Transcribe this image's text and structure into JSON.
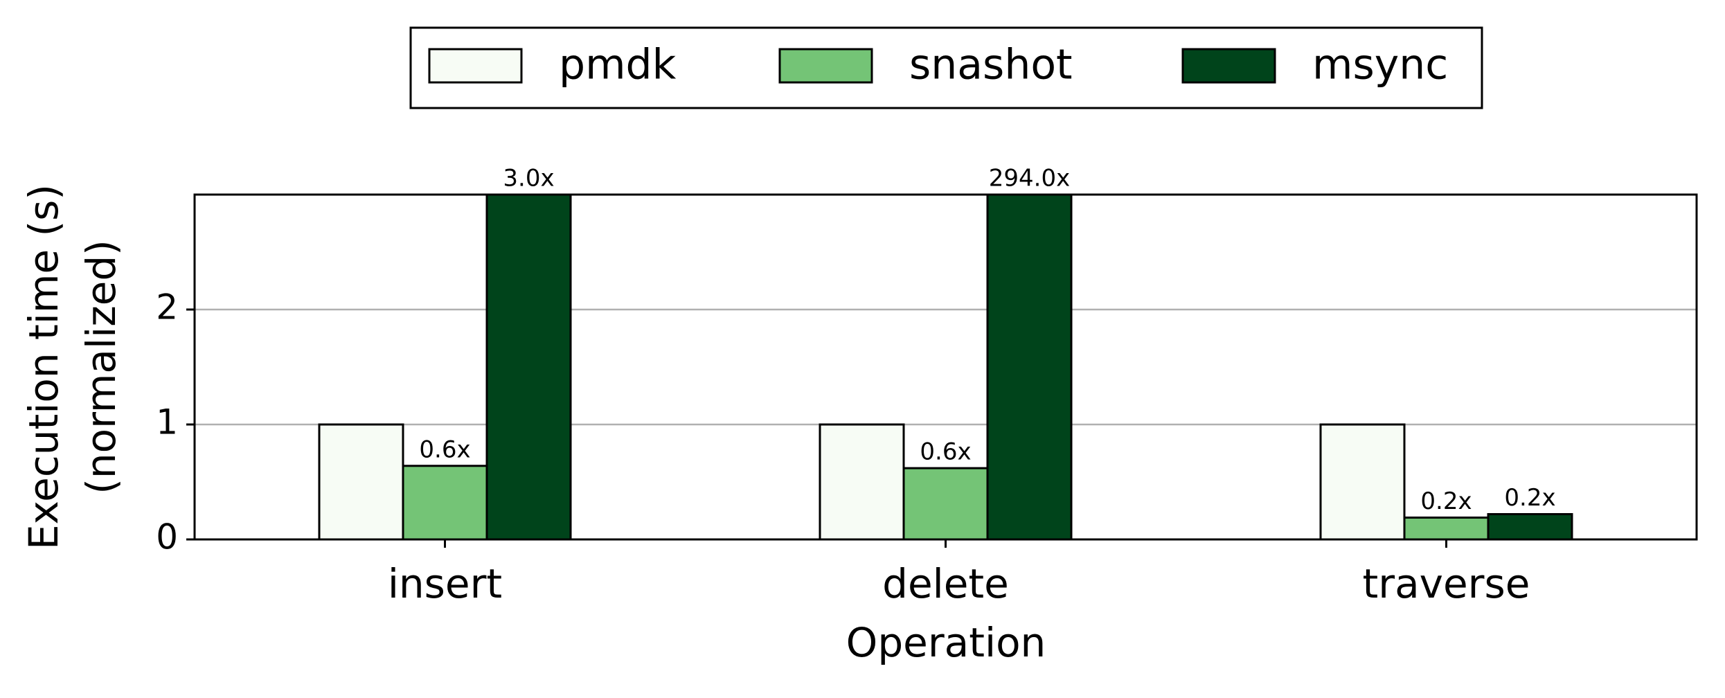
{
  "chart_data": {
    "type": "bar",
    "xlabel": "Operation",
    "ylabel": [
      "Execution time (s)",
      "(normalized)"
    ],
    "categories": [
      "insert",
      "delete",
      "traverse"
    ],
    "series": [
      {
        "name": "pmdk",
        "color": "#f7fcf5",
        "values": [
          1,
          1,
          1
        ]
      },
      {
        "name": "snashot",
        "color": "#74c476",
        "values": [
          0.64,
          0.62,
          0.19
        ],
        "value_labels": [
          "0.6x",
          "0.6x",
          "0.2x"
        ]
      },
      {
        "name": "msync",
        "color": "#00441b",
        "values": [
          3.0,
          294.0,
          0.22
        ],
        "value_labels": [
          "3.0x",
          "294.0x",
          "0.2x"
        ]
      }
    ],
    "ylim": [
      0,
      3
    ],
    "yticks": [
      0,
      1,
      2
    ],
    "grid": true,
    "legend": "top"
  }
}
